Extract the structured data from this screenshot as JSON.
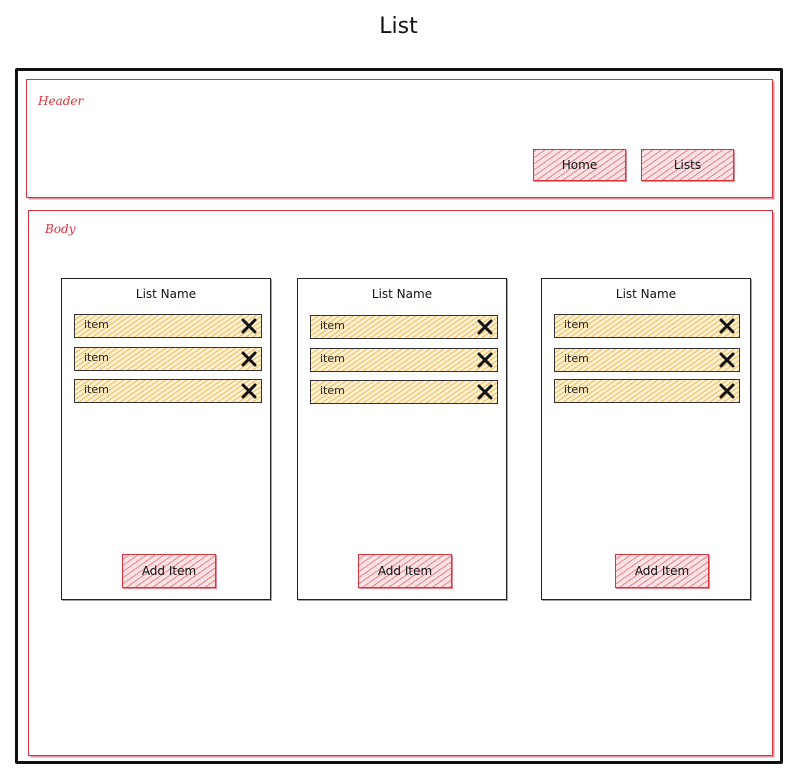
{
  "title": "List",
  "header": {
    "label": "Header",
    "nav": [
      {
        "label": "Home"
      },
      {
        "label": "Lists"
      }
    ]
  },
  "body": {
    "label": "Body",
    "lists": [
      {
        "name": "List Name",
        "items": [
          {
            "text": "item"
          },
          {
            "text": "item"
          },
          {
            "text": "item"
          }
        ],
        "add_label": "Add Item"
      },
      {
        "name": "List Name",
        "items": [
          {
            "text": "item"
          },
          {
            "text": "item"
          },
          {
            "text": "item"
          }
        ],
        "add_label": "Add Item"
      },
      {
        "name": "List Name",
        "items": [
          {
            "text": "item"
          },
          {
            "text": "item"
          },
          {
            "text": "item"
          }
        ],
        "add_label": "Add Item"
      }
    ]
  },
  "icons": {
    "remove_item": "close-icon"
  },
  "colors": {
    "region_outline": "#d9343f",
    "button_fill": "#fbe3e5",
    "item_fill": "#f5b23e",
    "ink": "#111111"
  }
}
